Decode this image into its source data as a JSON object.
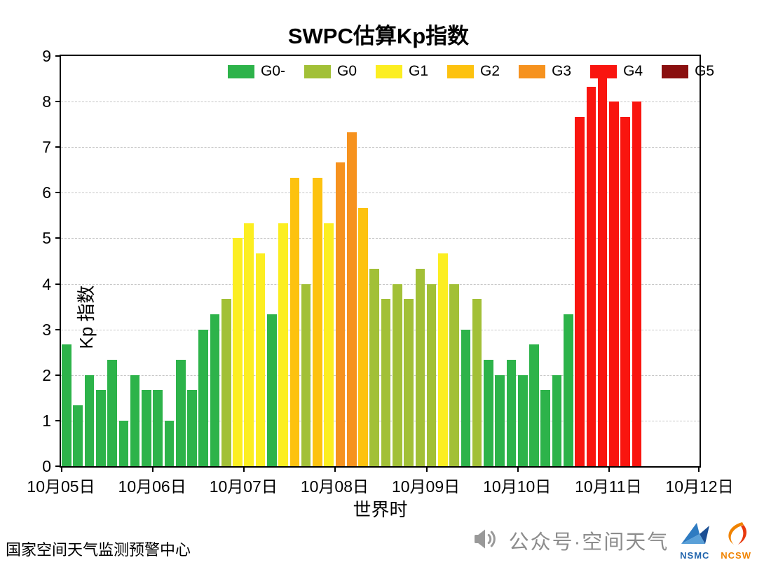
{
  "page": {
    "title": "SWPC估算Kp指数",
    "footer_left": "国家空间天气监测预警中心",
    "footer_right": "公众号·空间天气"
  },
  "logos": {
    "nsmc": "NSMC",
    "ncsw": "NCSW"
  },
  "chart_data": {
    "type": "bar",
    "title": "SWPC估算Kp指数",
    "xlabel": "世界时",
    "ylabel": "Kp 指数",
    "ylim": [
      0,
      9
    ],
    "yticks": [
      0,
      1,
      2,
      3,
      4,
      5,
      6,
      7,
      8,
      9
    ],
    "x_tick_labels": [
      "10月05日",
      "10月06日",
      "10月07日",
      "10月08日",
      "10月09日",
      "10月10日",
      "10月11日",
      "10月12日"
    ],
    "bars_per_day": 8,
    "grid": "horizontal-dashed",
    "legend_position": "top-inside",
    "legend": [
      {
        "label": "G0-",
        "color": "#2db34a",
        "min_kp": 0
      },
      {
        "label": "G0",
        "color": "#a2c037",
        "min_kp": 3.5
      },
      {
        "label": "G1",
        "color": "#fcee21",
        "min_kp": 4.5
      },
      {
        "label": "G2",
        "color": "#fdc20f",
        "min_kp": 5.5
      },
      {
        "label": "G3",
        "color": "#f6921e",
        "min_kp": 6.5
      },
      {
        "label": "G4",
        "color": "#f9150f",
        "min_kp": 7.5
      },
      {
        "label": "G5",
        "color": "#8a0f0f",
        "min_kp": 8.9
      }
    ],
    "values": [
      2.67,
      1.33,
      2.0,
      1.67,
      2.33,
      1.0,
      2.0,
      1.67,
      1.67,
      1.0,
      2.33,
      1.67,
      3.0,
      3.33,
      3.67,
      5.0,
      5.33,
      4.67,
      3.33,
      5.33,
      6.33,
      4.0,
      6.33,
      5.33,
      6.67,
      7.33,
      5.67,
      4.33,
      3.67,
      4.0,
      3.67,
      4.33,
      4.0,
      4.67,
      4.0,
      3.0,
      3.67,
      2.33,
      2.0,
      2.33,
      2.0,
      2.67,
      1.67,
      2.0,
      3.33,
      7.67,
      8.33,
      8.67,
      8.0,
      7.67,
      8.0
    ]
  }
}
